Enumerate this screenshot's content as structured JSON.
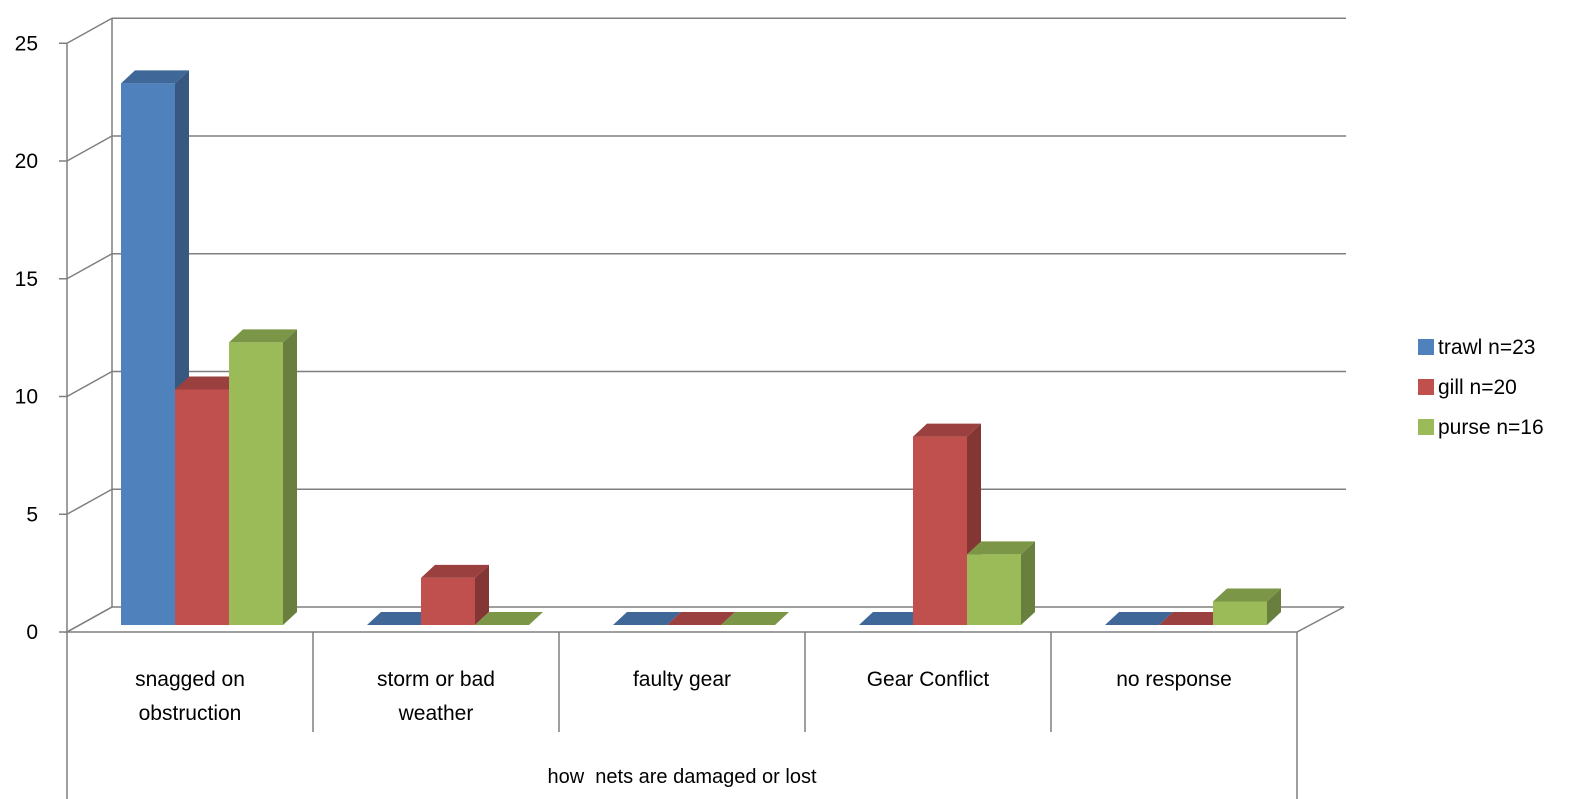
{
  "chart_data": {
    "type": "bar",
    "style": "3d-clustered-column",
    "title": "",
    "xlabel": "how  nets are damaged or lost",
    "ylabel": "",
    "ylim": [
      0,
      25
    ],
    "yticks": [
      "0",
      "5",
      "10",
      "15",
      "20",
      "25"
    ],
    "grid": true,
    "legend_position": "right",
    "categories": [
      "snagged on obstruction",
      "storm or bad weather",
      "faulty gear",
      "Gear Conflict",
      "no response"
    ],
    "category_lines": [
      [
        "snagged on",
        "obstruction"
      ],
      [
        "storm or bad",
        "weather"
      ],
      [
        "faulty gear"
      ],
      [
        "Gear Conflict"
      ],
      [
        "no response"
      ]
    ],
    "series": [
      {
        "name": "trawl n=23",
        "values": [
          23,
          0,
          0,
          0,
          0
        ],
        "color": "#4F81BD"
      },
      {
        "name": "gill n=20",
        "values": [
          10,
          2,
          0,
          8,
          0
        ],
        "color": "#C0504D"
      },
      {
        "name": "purse n=16",
        "values": [
          12,
          0,
          0,
          3,
          1
        ],
        "color": "#9BBB59"
      }
    ]
  }
}
